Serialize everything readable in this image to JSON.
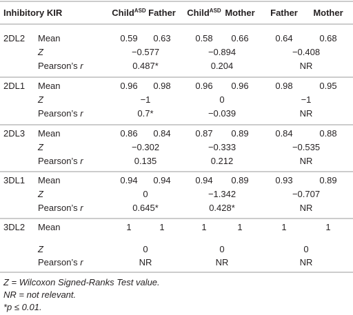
{
  "table": {
    "header": [
      "Inhibitory KIR",
      {
        "text": "Child",
        "sup": "ASD"
      },
      "Father",
      {
        "text": "Child",
        "sup": "ASD"
      },
      "Mother",
      "Father",
      "Mother"
    ],
    "groups": [
      {
        "kir": "2DL2",
        "rows": [
          {
            "label": "Mean",
            "values": [
              "0.59",
              "0.63",
              "0.58",
              "0.66",
              "0.64",
              "0.68"
            ]
          },
          {
            "label": {
              "italic": "Z"
            },
            "values": [
              "−0.577",
              "−0.894",
              "−0.408"
            ]
          },
          {
            "label": {
              "text": "Pearson’s",
              "italic": "r"
            },
            "values": [
              "0.487*",
              "0.204",
              "NR"
            ]
          }
        ]
      },
      {
        "kir": "2DL1",
        "rows": [
          {
            "label": "Mean",
            "values": [
              "0.96",
              "0.98",
              "0.96",
              "0.96",
              "0.98",
              "0.95"
            ]
          },
          {
            "label": {
              "italic": "Z"
            },
            "values": [
              "−1",
              "0",
              "−1"
            ]
          },
          {
            "label": {
              "text": "Pearson’s",
              "italic": "r"
            },
            "values": [
              "0.7*",
              "−0.039",
              "NR"
            ]
          }
        ]
      },
      {
        "kir": "2DL3",
        "rows": [
          {
            "label": "Mean",
            "values": [
              "0.86",
              "0.84",
              "0.87",
              "0.89",
              "0.84",
              "0.88"
            ]
          },
          {
            "label": {
              "italic": "Z"
            },
            "values": [
              "−0.302",
              "−0.333",
              "−0.535"
            ]
          },
          {
            "label": {
              "text": "Pearson’s",
              "italic": "r"
            },
            "values": [
              "0.135",
              "0.212",
              "NR"
            ]
          }
        ]
      },
      {
        "kir": "3DL1",
        "rows": [
          {
            "label": "Mean",
            "values": [
              "0.94",
              "0.94",
              "0.94",
              "0.89",
              "0.93",
              "0.89"
            ]
          },
          {
            "label": {
              "italic": "Z"
            },
            "values": [
              "0",
              "−1.342",
              "−0.707"
            ]
          },
          {
            "label": {
              "text": "Pearson’s",
              "italic": "r"
            },
            "values": [
              "0.645*",
              "0.428*",
              "NR"
            ]
          }
        ]
      },
      {
        "kir": "3DL2",
        "rows": [
          {
            "label": "Mean",
            "values": [
              "1",
              "1",
              "1",
              "1",
              "1",
              "1"
            ]
          },
          {
            "label": {
              "italic": "Z"
            },
            "values": [
              "0",
              "0",
              "0"
            ]
          },
          {
            "label": {
              "text": "Pearson’s",
              "italic": "r"
            },
            "values": [
              "NR",
              "NR",
              "NR"
            ]
          }
        ]
      }
    ],
    "footnotes": [
      "Z = Wilcoxon Signed-Ranks Test value.",
      "NR = not relevant.",
      "*p ≤ 0.01."
    ]
  }
}
